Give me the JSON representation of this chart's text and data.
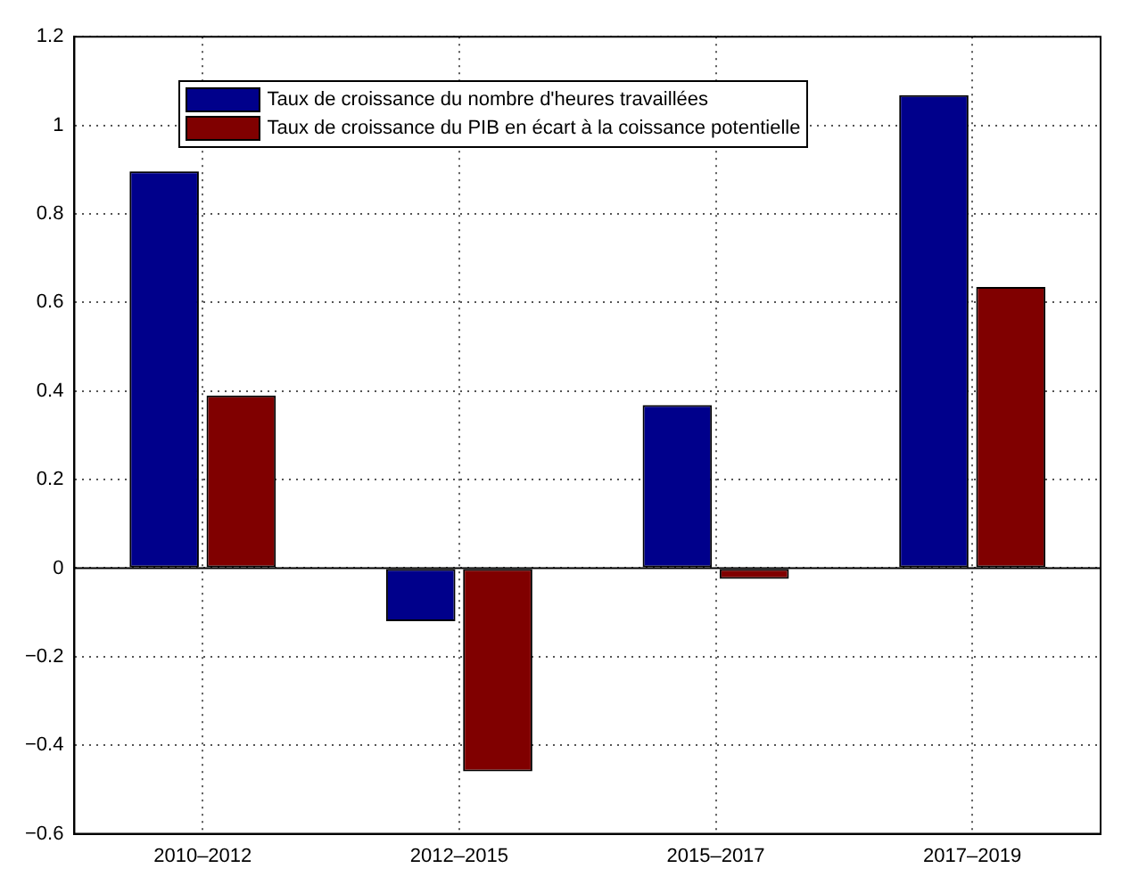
{
  "chart_data": {
    "type": "bar",
    "categories": [
      "2010–2012",
      "2012–2015",
      "2015–2017",
      "2017–2019"
    ],
    "series": [
      {
        "name": "Taux de croissance du nombre d'heures travaillées",
        "color": "#00008b",
        "values": [
          0.896,
          -0.12,
          0.368,
          1.068
        ]
      },
      {
        "name": "Taux de croissance du PIB en écart à la coissance potentielle",
        "color": "#800000",
        "values": [
          0.39,
          -0.459,
          -0.024,
          0.635
        ]
      }
    ],
    "ylim": [
      -0.6,
      1.2
    ],
    "yticks": [
      -0.6,
      -0.4,
      -0.2,
      0,
      0.2,
      0.4,
      0.6,
      0.8,
      1,
      1.2
    ],
    "grid": true,
    "legend": "top left"
  }
}
